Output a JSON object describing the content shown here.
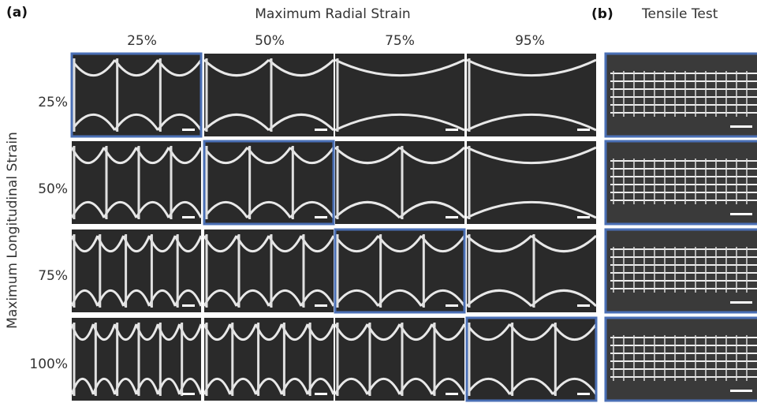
{
  "panel_a": {
    "label": "(a)",
    "column_title": "Maximum Radial Strain",
    "columns": [
      "25%",
      "50%",
      "75%",
      "95%"
    ],
    "row_title": "Maximum Longitudinal Strain",
    "rows": [
      "25%",
      "50%",
      "75%",
      "100%"
    ]
  },
  "panel_b": {
    "label": "(b)",
    "title": "Tensile Test"
  }
}
